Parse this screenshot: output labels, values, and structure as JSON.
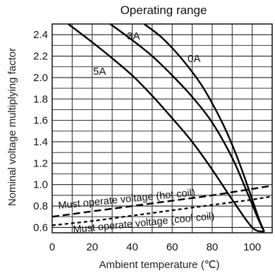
{
  "chart_data": {
    "type": "line",
    "title": "Operating range",
    "xlabel": "Ambient temperature (℃)",
    "ylabel": "Nominal voltage multiplying factor",
    "xlim": [
      0,
      110
    ],
    "ylim": [
      0.55,
      2.5
    ],
    "x_ticks": [
      0,
      20,
      40,
      60,
      80,
      100
    ],
    "y_ticks": [
      0.6,
      0.8,
      1.0,
      1.2,
      1.4,
      1.6,
      1.8,
      2.0,
      2.2,
      2.4
    ],
    "grid": true,
    "series": [
      {
        "name": "3A",
        "style": "solid",
        "x": [
          29,
          40,
          50,
          60,
          70,
          80,
          90,
          97,
          103,
          106
        ],
        "y": [
          2.5,
          2.35,
          2.2,
          2.02,
          1.82,
          1.58,
          1.25,
          0.95,
          0.68,
          0.56
        ]
      },
      {
        "name": "0A",
        "style": "solid",
        "x": [
          46,
          55,
          65,
          75,
          85,
          92,
          98,
          103,
          106
        ],
        "y": [
          2.5,
          2.37,
          2.17,
          1.92,
          1.58,
          1.28,
          0.97,
          0.7,
          0.56
        ]
      },
      {
        "name": "5A",
        "style": "solid",
        "x": [
          8,
          20,
          30,
          40,
          50,
          60,
          70,
          80,
          90,
          100,
          106
        ],
        "y": [
          2.5,
          2.33,
          2.18,
          2.02,
          1.83,
          1.62,
          1.4,
          1.14,
          0.86,
          0.6,
          0.56
        ]
      },
      {
        "name": "Must operate voltage (hot coil)",
        "style": "dashed",
        "x": [
          0,
          20,
          40,
          60,
          80,
          100,
          110
        ],
        "y": [
          0.7,
          0.75,
          0.8,
          0.85,
          0.9,
          0.96,
          0.99
        ]
      },
      {
        "name": "Must operate voltage (cool coil)",
        "style": "dashed-fine",
        "x": [
          0,
          20,
          40,
          60,
          80,
          100,
          110
        ],
        "y": [
          0.62,
          0.66,
          0.71,
          0.76,
          0.81,
          0.86,
          0.89
        ]
      }
    ]
  }
}
